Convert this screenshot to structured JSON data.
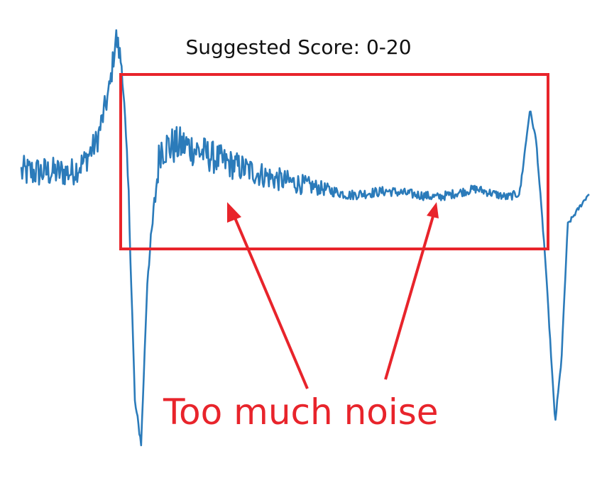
{
  "chart_data": {
    "type": "line",
    "title": "Suggested Score: 0-20",
    "xlabel": "",
    "ylabel": "",
    "grid": false,
    "legend": "none",
    "annotation": "Too much noise",
    "colors": {
      "series": "#2b7bba",
      "annotation": "#e8242b",
      "title": "#111111"
    },
    "series": [
      {
        "keypoints": [
          [
            0,
            0.3
          ],
          [
            4,
            0.3
          ],
          [
            5,
            0.35
          ],
          [
            6,
            0.45
          ],
          [
            7,
            0.7
          ],
          [
            7.5,
            0.95
          ],
          [
            8,
            0.8
          ],
          [
            8.5,
            0.2
          ],
          [
            9,
            -0.8
          ],
          [
            9.5,
            -1.0
          ],
          [
            10,
            -0.2
          ],
          [
            11,
            0.42
          ],
          [
            13,
            0.43
          ],
          [
            16,
            0.35
          ],
          [
            20,
            0.27
          ],
          [
            24,
            0.22
          ],
          [
            26,
            0.19
          ],
          [
            29,
            0.21
          ],
          [
            33,
            0.18
          ],
          [
            36,
            0.22
          ],
          [
            38.5,
            0.18
          ],
          [
            39.5,
            0.2
          ],
          [
            40.3,
            0.6
          ],
          [
            40.8,
            0.45
          ],
          [
            41.5,
            -0.1
          ],
          [
            42.3,
            -0.9
          ],
          [
            42.8,
            -0.6
          ],
          [
            43.3,
            0.05
          ],
          [
            45,
            0.2
          ]
        ],
        "noise": [
          [
            0,
            0.08
          ],
          [
            8,
            0.06
          ],
          [
            9,
            0.02
          ],
          [
            10,
            0.02
          ],
          [
            11,
            0.1
          ],
          [
            17,
            0.07
          ],
          [
            22,
            0.05
          ],
          [
            25,
            0.025
          ],
          [
            39.5,
            0.02
          ],
          [
            40,
            0.01
          ],
          [
            43.5,
            0.01
          ],
          [
            45,
            0.01
          ]
        ],
        "x_range": [
          0,
          45
        ],
        "y_range": [
          -1.1,
          1.05
        ]
      }
    ]
  }
}
